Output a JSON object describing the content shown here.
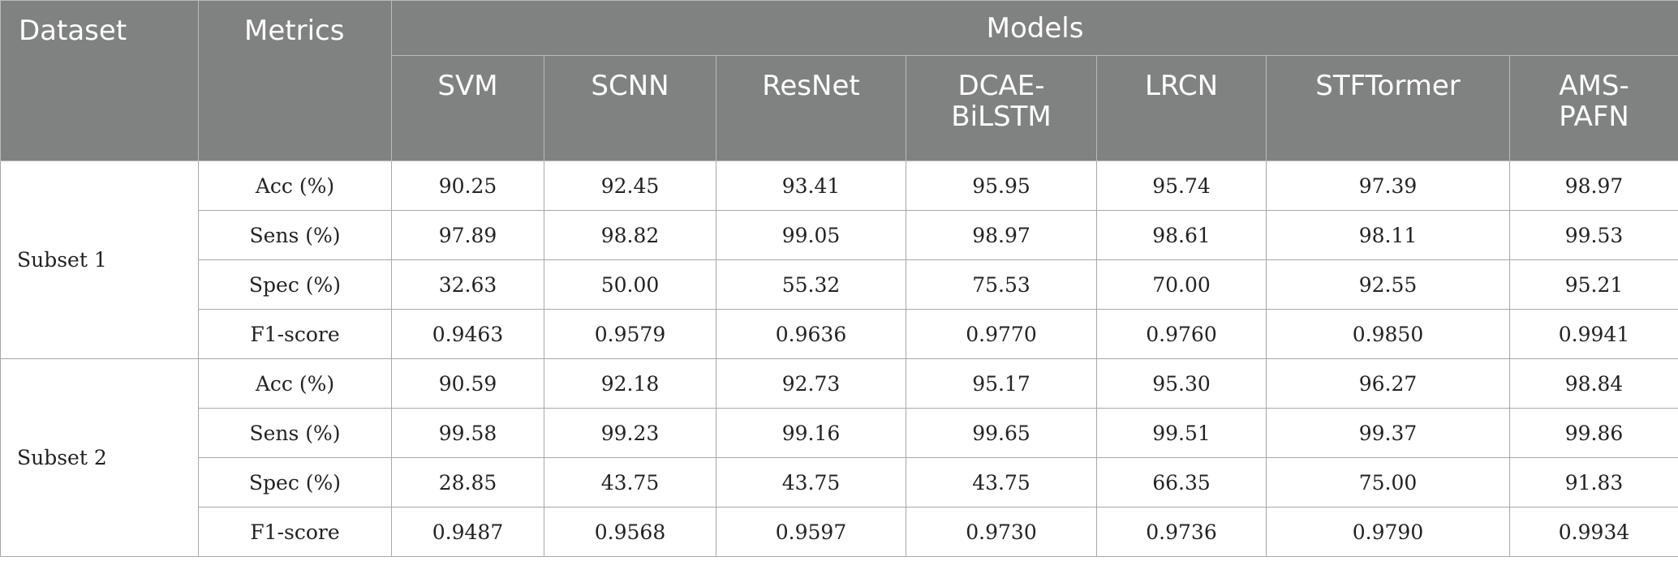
{
  "header": {
    "dataset_label": "Dataset",
    "metrics_label": "Metrics",
    "models_label": "Models",
    "models": [
      "SVM",
      "SCNN",
      "ResNet",
      "DCAE-\nBiLSTM",
      "LRCN",
      "STFTormer",
      "AMS-\nPAFN"
    ]
  },
  "subsets": [
    {
      "name": "Subset 1",
      "rows": [
        {
          "metric": "Acc (%)",
          "values": [
            "90.25",
            "92.45",
            "93.41",
            "95.95",
            "95.74",
            "97.39",
            "98.97"
          ]
        },
        {
          "metric": "Sens (%)",
          "values": [
            "97.89",
            "98.82",
            "99.05",
            "98.97",
            "98.61",
            "98.11",
            "99.53"
          ]
        },
        {
          "metric": "Spec (%)",
          "values": [
            "32.63",
            "50.00",
            "55.32",
            "75.53",
            "70.00",
            "92.55",
            "95.21"
          ]
        },
        {
          "metric": "F1-score",
          "values": [
            "0.9463",
            "0.9579",
            "0.9636",
            "0.9770",
            "0.9760",
            "0.9850",
            "0.9941"
          ]
        }
      ]
    },
    {
      "name": "Subset 2",
      "rows": [
        {
          "metric": "Acc (%)",
          "values": [
            "90.59",
            "92.18",
            "92.73",
            "95.17",
            "95.30",
            "96.27",
            "98.84"
          ]
        },
        {
          "metric": "Sens (%)",
          "values": [
            "99.58",
            "99.23",
            "99.16",
            "99.65",
            "99.51",
            "99.37",
            "99.86"
          ]
        },
        {
          "metric": "Spec (%)",
          "values": [
            "28.85",
            "43.75",
            "43.75",
            "43.75",
            "66.35",
            "75.00",
            "91.83"
          ]
        },
        {
          "metric": "F1-score",
          "values": [
            "0.9487",
            "0.9568",
            "0.9597",
            "0.9730",
            "0.9736",
            "0.9790",
            "0.9934"
          ]
        }
      ]
    }
  ]
}
